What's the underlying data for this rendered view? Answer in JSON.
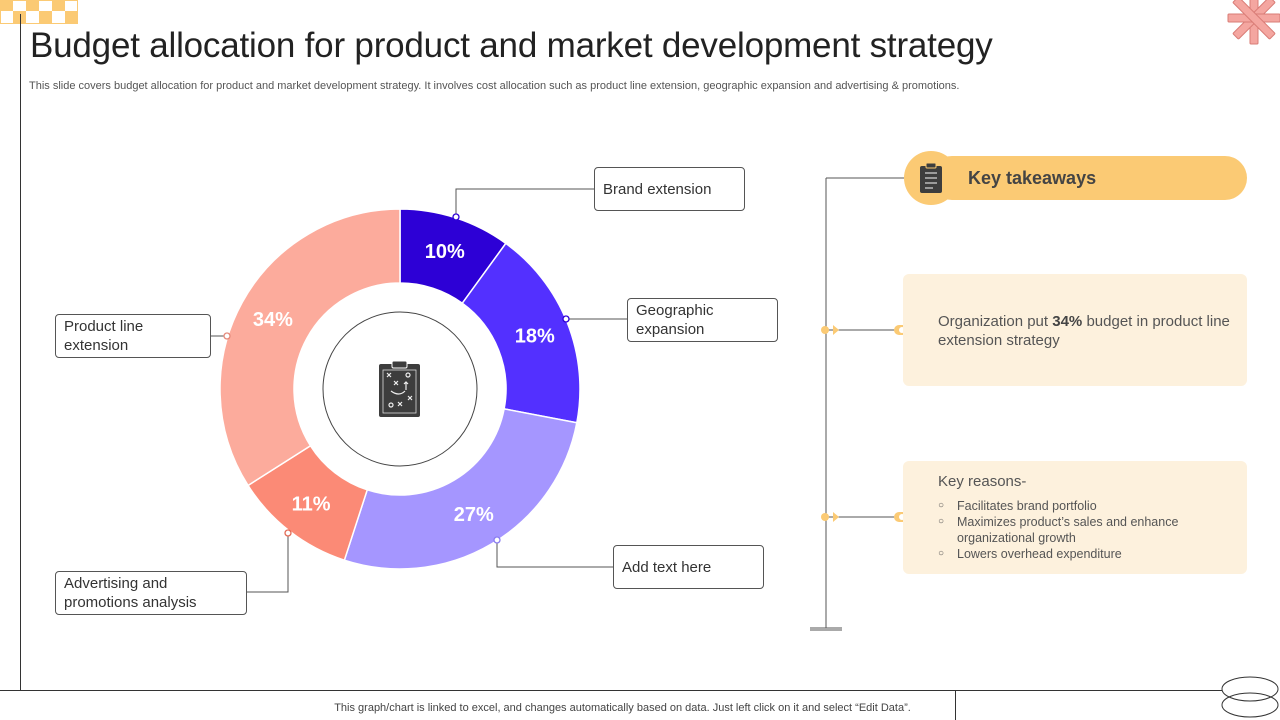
{
  "title": "Budget allocation for product and market development strategy",
  "subtitle": "This slide covers budget allocation for product and market development strategy. It involves cost allocation such as product line extension, geographic expansion and advertising & promotions.",
  "footer": "This graph/chart is linked to excel, and changes automatically based on data. Just left click on it and select “Edit Data”.",
  "chart_data": {
    "type": "pie",
    "variant": "donut",
    "categories": [
      "Brand extension",
      "Geographic expansion",
      "Add text here",
      "Advertising and promotions analysis",
      "Product line extension"
    ],
    "values": [
      10,
      18,
      27,
      11,
      34
    ],
    "value_labels": [
      "10%",
      "18%",
      "27%",
      "11%",
      "34%"
    ],
    "colors": [
      "#2d00d6",
      "#5330ff",
      "#a596ff",
      "#fb8a76",
      "#fcab9c"
    ],
    "center_icon": "clipboard-strategy-icon",
    "legend": "callout-boxes"
  },
  "callouts": {
    "brand_extension": "Brand extension",
    "geographic_expansion": "Geographic\nexpansion",
    "add_text": "Add text here",
    "advertising": "Advertising and\npromotions analysis",
    "product_line": "Product line\nextension"
  },
  "key_takeaways": {
    "label": "Key takeaways",
    "icon": "clipboard-icon",
    "card1": {
      "prefix": "Organization put ",
      "highlight": "34%",
      "suffix": " budget in product line extension strategy"
    },
    "card2": {
      "title": "Key reasons-",
      "reasons": [
        "Facilitates brand portfolio",
        "Maximizes product’s sales and enhance organizational growth",
        "Lowers overhead expenditure"
      ]
    }
  },
  "colors": {
    "accent_yellow": "#fbca74",
    "card_bg": "#fdf1dd",
    "decor_pink": "#f4a6a0"
  }
}
